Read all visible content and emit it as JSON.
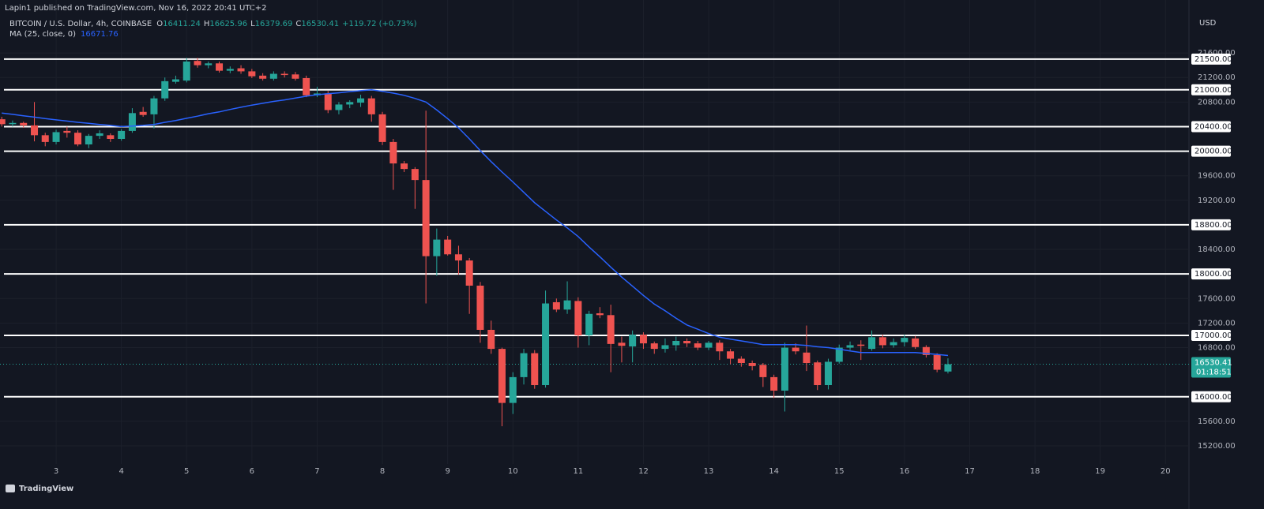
{
  "chart_data": {
    "type": "candlestick",
    "byline": "Lapin1 published on TradingView.com, Nov 16, 2022 20:41 UTC+2",
    "title": "BITCOIN / U.S. Dollar, 4h, COINBASE",
    "ohlc_labels": [
      "O",
      "H",
      "L",
      "C"
    ],
    "change": "+119.72 (+0.73%)",
    "currency": "USD",
    "countdown": "01:18:51",
    "branding": "TradingView",
    "up_color": "#26a69a",
    "down_color": "#ef5350",
    "grid": true,
    "x": [
      2.167,
      2.333,
      2.5,
      2.667,
      2.833,
      3,
      3.167,
      3.333,
      3.5,
      3.667,
      3.833,
      4,
      4.167,
      4.333,
      4.5,
      4.667,
      4.833,
      5,
      5.167,
      5.333,
      5.5,
      5.667,
      5.833,
      6,
      6.167,
      6.333,
      6.5,
      6.667,
      6.833,
      7,
      7.167,
      7.333,
      7.5,
      7.667,
      7.833,
      8,
      8.167,
      8.333,
      8.5,
      8.667,
      8.833,
      9,
      9.167,
      9.333,
      9.5,
      9.667,
      9.833,
      10,
      10.167,
      10.333,
      10.5,
      10.667,
      10.833,
      11,
      11.167,
      11.333,
      11.5,
      11.667,
      11.833,
      12,
      12.167,
      12.333,
      12.5,
      12.667,
      12.833,
      13,
      13.167,
      13.333,
      13.5,
      13.667,
      13.833,
      14,
      14.167,
      14.333,
      14.5,
      14.667,
      14.833,
      15,
      15.167,
      15.333,
      15.5,
      15.667,
      15.833,
      16,
      16.167,
      16.333,
      16.5,
      16.667
    ],
    "open": [
      20520,
      20440,
      20460,
      20420,
      20260,
      20150,
      20330,
      20300,
      20110,
      20250,
      20260,
      20200,
      20330,
      20640,
      20600,
      20860,
      21130,
      21150,
      21470,
      21400,
      21430,
      21310,
      21350,
      21300,
      21230,
      21180,
      21260,
      21250,
      21190,
      20910,
      20940,
      20670,
      20760,
      20790,
      20860,
      20600,
      20150,
      19800,
      19710,
      19530,
      18290,
      18560,
      18320,
      18220,
      17810,
      17090,
      16780,
      15900,
      16320,
      16710,
      16190,
      17540,
      17420,
      17560,
      17000,
      17360,
      17330,
      16880,
      16820,
      17010,
      16870,
      16780,
      16840,
      16910,
      16870,
      16800,
      16880,
      16740,
      16620,
      16550,
      16520,
      16320,
      16100,
      16800,
      16720,
      16560,
      16190,
      16570,
      16800,
      16850,
      16780,
      16970,
      16840,
      16890,
      16950,
      16810,
      16680,
      16411.24
    ],
    "high": [
      20560,
      20500,
      20480,
      20800,
      20300,
      20350,
      20400,
      20340,
      20280,
      20340,
      20290,
      20360,
      20700,
      20720,
      20900,
      21200,
      21230,
      21520,
      21520,
      21460,
      21460,
      21380,
      21400,
      21340,
      21270,
      21300,
      21300,
      21290,
      21230,
      21050,
      20980,
      20800,
      20830,
      20920,
      20900,
      20640,
      20200,
      19840,
      19740,
      20660,
      18740,
      18620,
      18460,
      18260,
      17870,
      17240,
      16800,
      16400,
      16780,
      16760,
      17730,
      17600,
      17880,
      17620,
      17400,
      17460,
      17500,
      16980,
      17080,
      17050,
      16900,
      16950,
      16980,
      16950,
      16910,
      16910,
      16920,
      16780,
      16660,
      16590,
      16550,
      16360,
      16880,
      16870,
      17160,
      16590,
      16620,
      16850,
      16900,
      16920,
      17080,
      17010,
      16950,
      17010,
      16990,
      16840,
      16710,
      16625.96
    ],
    "low": [
      20400,
      20400,
      20380,
      20160,
      20080,
      20110,
      20220,
      20080,
      20050,
      20200,
      20150,
      20170,
      20300,
      20560,
      20370,
      20820,
      21100,
      21120,
      21360,
      21350,
      21280,
      21270,
      21260,
      21190,
      21150,
      21150,
      21200,
      21150,
      20880,
      20880,
      20620,
      20600,
      20700,
      20720,
      20480,
      20100,
      19370,
      19660,
      19060,
      17520,
      17970,
      18300,
      17990,
      17350,
      16880,
      16700,
      15520,
      15720,
      16200,
      16130,
      16150,
      17380,
      17350,
      16800,
      16840,
      17280,
      16400,
      16560,
      16560,
      16780,
      16700,
      16720,
      16750,
      16810,
      16760,
      16760,
      16600,
      16530,
      16490,
      16430,
      16160,
      15980,
      15760,
      16690,
      16420,
      16110,
      16120,
      16540,
      16760,
      16600,
      16750,
      16790,
      16800,
      16820,
      16780,
      16640,
      16400,
      16379.69
    ],
    "close": [
      20440,
      20460,
      20420,
      20260,
      20150,
      20310,
      20300,
      20110,
      20250,
      20290,
      20200,
      20330,
      20620,
      20590,
      20860,
      21140,
      21170,
      21460,
      21400,
      21430,
      21310,
      21340,
      21300,
      21220,
      21180,
      21260,
      21240,
      21180,
      20910,
      20940,
      20670,
      20760,
      20800,
      20860,
      20600,
      20150,
      19800,
      19710,
      19530,
      18290,
      18560,
      18320,
      18220,
      17810,
      17090,
      16780,
      15900,
      16320,
      16710,
      16190,
      17520,
      17420,
      17570,
      17000,
      17350,
      17330,
      16860,
      16830,
      17010,
      16870,
      16780,
      16840,
      16910,
      16870,
      16800,
      16880,
      16740,
      16620,
      16550,
      16500,
      16320,
      16100,
      16800,
      16740,
      16550,
      16190,
      16570,
      16800,
      16840,
      16830,
      16970,
      16840,
      16890,
      16960,
      16810,
      16680,
      16440,
      16530.41
    ],
    "ma": {
      "name": "MA (25, close, 0)",
      "color": "#2962ff",
      "values": [
        20620,
        20600,
        20575,
        20555,
        20530,
        20510,
        20490,
        20470,
        20455,
        20435,
        20420,
        20400,
        20410,
        20420,
        20435,
        20470,
        20500,
        20535,
        20570,
        20610,
        20640,
        20680,
        20715,
        20750,
        20780,
        20810,
        20835,
        20865,
        20895,
        20920,
        20935,
        20950,
        20970,
        20985,
        21000,
        20975,
        20945,
        20910,
        20860,
        20800,
        20670,
        20530,
        20380,
        20200,
        20010,
        19830,
        19660,
        19500,
        19330,
        19160,
        19020,
        18880,
        18750,
        18610,
        18440,
        18280,
        18110,
        17950,
        17800,
        17650,
        17510,
        17400,
        17280,
        17170,
        17100,
        17030,
        16970,
        16940,
        16910,
        16880,
        16850,
        16850,
        16850,
        16850,
        16835,
        16815,
        16800,
        16775,
        16745,
        16720,
        16720,
        16720,
        16720,
        16720,
        16720,
        16705,
        16690,
        16671.76
      ]
    },
    "levels": [
      {
        "value": 21500,
        "label": "21500.00"
      },
      {
        "value": 21000,
        "label": "21000.00"
      },
      {
        "value": 20400,
        "label": "20400.00"
      },
      {
        "value": 20000,
        "label": "20000.00"
      },
      {
        "value": 18800,
        "label": "18800.00"
      },
      {
        "value": 18000,
        "label": "18000.00"
      },
      {
        "value": 17000,
        "label": "17000.00"
      },
      {
        "value": 16000,
        "label": "16000.00"
      }
    ],
    "ylim": [
      14725,
      22205
    ],
    "yticks": [
      {
        "value": 21600,
        "label": "21600.00"
      },
      {
        "value": 21200,
        "label": "21200.00"
      },
      {
        "value": 20800,
        "label": "20800.00"
      },
      {
        "value": 19600,
        "label": "19600.00"
      },
      {
        "value": 19200,
        "label": "19200.00"
      },
      {
        "value": 18400,
        "label": "18400.00"
      },
      {
        "value": 17600,
        "label": "17600.00"
      },
      {
        "value": 17200,
        "label": "17200.00"
      },
      {
        "value": 16800,
        "label": "16800.00"
      },
      {
        "value": 15600,
        "label": "15600.00"
      },
      {
        "value": 15200,
        "label": "15200.00"
      }
    ],
    "xlim": [
      2.14,
      20.36
    ],
    "xticks": [
      3,
      4,
      5,
      6,
      7,
      8,
      9,
      10,
      11,
      12,
      13,
      14,
      15,
      16,
      17,
      18,
      19,
      20
    ]
  }
}
